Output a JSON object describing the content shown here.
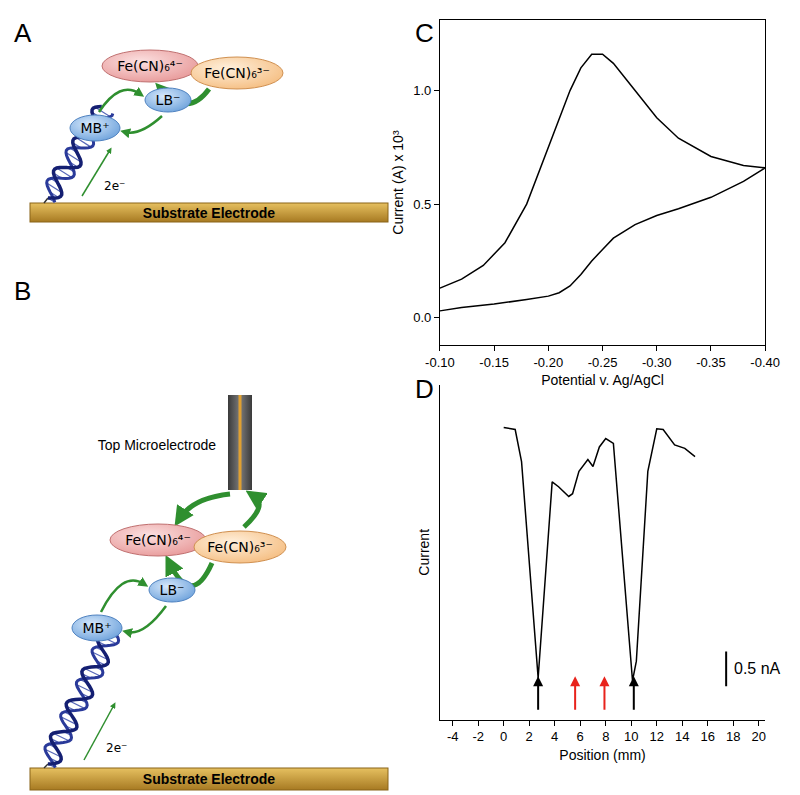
{
  "diagrams": [
    {
      "panel": "A",
      "substrate": "Substrate Electrode",
      "electrons": "2e⁻",
      "nodes": {
        "mb": "MB⁺",
        "lb": "LB⁻",
        "fe4": "Fe(CN)₆⁴⁻",
        "fe3": "Fe(CN)₆³⁻"
      }
    },
    {
      "panel": "B",
      "substrate": "Substrate Electrode",
      "electrons": "2e⁻",
      "top_electrode": "Top Microelectrode",
      "nodes": {
        "mb": "MB⁺",
        "lb": "LB⁻",
        "fe4": "Fe(CN)₆⁴⁻",
        "fe3": "Fe(CN)₆³⁻"
      }
    }
  ],
  "chart_data": [
    {
      "panel": "C",
      "type": "line",
      "x_label": "Potential v. Ag/AgCl",
      "y_label": "Current (A) x 10³",
      "x": [
        -0.1,
        -0.12,
        -0.14,
        -0.16,
        -0.18,
        -0.2,
        -0.22,
        -0.23,
        -0.24,
        -0.25,
        -0.26,
        -0.28,
        -0.3,
        -0.32,
        -0.35,
        -0.38,
        -0.4,
        -0.38,
        -0.35,
        -0.32,
        -0.3,
        -0.28,
        -0.26,
        -0.25,
        -0.24,
        -0.23,
        -0.22,
        -0.21,
        -0.2,
        -0.18,
        -0.15,
        -0.12,
        -0.1
      ],
      "values": [
        0.13,
        0.17,
        0.23,
        0.33,
        0.5,
        0.75,
        1.0,
        1.1,
        1.16,
        1.16,
        1.12,
        1.0,
        0.88,
        0.79,
        0.71,
        0.67,
        0.66,
        0.6,
        0.53,
        0.48,
        0.45,
        0.41,
        0.35,
        0.3,
        0.25,
        0.19,
        0.14,
        0.11,
        0.095,
        0.08,
        0.06,
        0.045,
        0.03
      ],
      "color": "#000000",
      "xlim": [
        -0.1,
        -0.4
      ],
      "xticks": [
        {
          "value": -0.1,
          "label": "-0.10"
        },
        {
          "value": -0.15,
          "label": "-0.15"
        },
        {
          "value": -0.2,
          "label": "-0.20"
        },
        {
          "value": -0.25,
          "label": "-0.25"
        },
        {
          "value": -0.3,
          "label": "-0.30"
        },
        {
          "value": -0.35,
          "label": "-0.35"
        },
        {
          "value": -0.4,
          "label": "-0.40"
        }
      ],
      "ylim": [
        -0.12,
        1.31
      ],
      "yticks": [
        {
          "value": 0,
          "label": "0.0"
        },
        {
          "value": 0.5,
          "label": "0.5"
        },
        {
          "value": 1.0,
          "label": "1.0"
        }
      ],
      "grid": false
    },
    {
      "panel": "D",
      "type": "line",
      "x_label": "Position (mm)",
      "y_label": "Current",
      "x": [
        0,
        0.9,
        1.4,
        2.7,
        3.8,
        4.3,
        5.1,
        5.4,
        5.9,
        6.6,
        7.0,
        7.5,
        8.0,
        8.6,
        10.1,
        10.4,
        11.3,
        12.0,
        12.5,
        13.4,
        14.2,
        15.0
      ],
      "values": [
        3.59,
        3.56,
        3.1,
        0,
        2.81,
        2.74,
        2.6,
        2.64,
        2.96,
        3.13,
        3.03,
        3.31,
        3.43,
        3.36,
        -0.04,
        0.24,
        2.96,
        3.57,
        3.56,
        3.34,
        3.29,
        3.17
      ],
      "color": "#000000",
      "xlim": [
        -5,
        20.5
      ],
      "xticks": [
        -4,
        -2,
        0,
        2,
        4,
        6,
        8,
        10,
        12,
        14,
        16,
        18,
        20
      ],
      "ylim": [
        -0.6,
        4.2
      ],
      "tick_labels": "x",
      "grid": false,
      "arrows": [
        {
          "x": 2.7,
          "color": "#000000"
        },
        {
          "x": 5.6,
          "color": "#e8231c"
        },
        {
          "x": 7.9,
          "color": "#e8231c"
        },
        {
          "x": 10.2,
          "color": "#000000"
        }
      ],
      "scale_bar": {
        "value": 0.5,
        "label": "0.5 nA"
      }
    }
  ]
}
